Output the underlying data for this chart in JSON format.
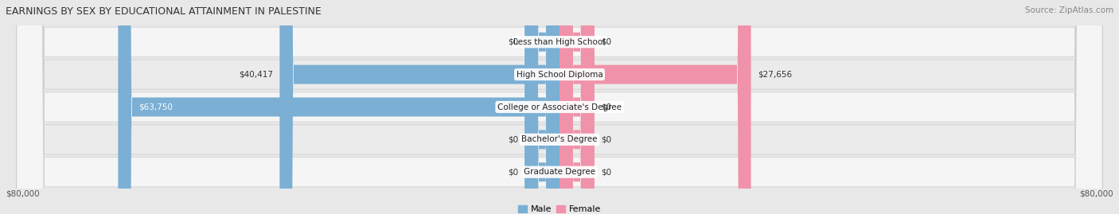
{
  "title": "EARNINGS BY SEX BY EDUCATIONAL ATTAINMENT IN PALESTINE",
  "source": "Source: ZipAtlas.com",
  "categories": [
    "Less than High School",
    "High School Diploma",
    "College or Associate's Degree",
    "Bachelor's Degree",
    "Graduate Degree"
  ],
  "male_values": [
    0,
    40417,
    63750,
    0,
    0
  ],
  "female_values": [
    0,
    27656,
    0,
    0,
    0
  ],
  "male_labels": [
    "$0",
    "$40,417",
    "$63,750",
    "$0",
    "$0"
  ],
  "female_labels": [
    "$0",
    "$27,656",
    "$0",
    "$0",
    "$0"
  ],
  "male_label_inside": [
    false,
    false,
    true,
    false,
    false
  ],
  "female_label_inside": [
    false,
    false,
    false,
    false,
    false
  ],
  "male_color": "#7bafd4",
  "female_color": "#f092aa",
  "max_val": 80000,
  "stub_val": 5000,
  "x_label_left": "$80,000",
  "x_label_right": "$80,000",
  "bg_color": "#e8e8e8",
  "row_bg": "#f5f5f5",
  "row_bg_alt": "#ebebeb",
  "title_fontsize": 9,
  "source_fontsize": 7.5,
  "bar_fontsize": 7.5,
  "legend_male": "Male",
  "legend_female": "Female"
}
